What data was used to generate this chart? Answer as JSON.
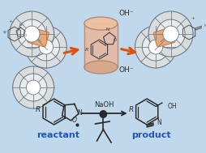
{
  "bg_color": "#c0d8ec",
  "cylinder_color": "#e8b8a0",
  "cylinder_edge": "#b08870",
  "arrow_color": "#e05010",
  "reactant_label": "reactant",
  "product_label": "product",
  "naoh_label": "NaOH",
  "label_color": "#2255bb",
  "text_color": "#1a1a1a",
  "oh_top": "OH⁻",
  "oh_bottom": "OH⁻",
  "ring_color": "#707880",
  "ring_fill": "#d8dde0",
  "orange_fill": "#e8a878",
  "font_size_label": 8.0,
  "font_size_naoh": 6.0,
  "font_size_oh": 6.5
}
